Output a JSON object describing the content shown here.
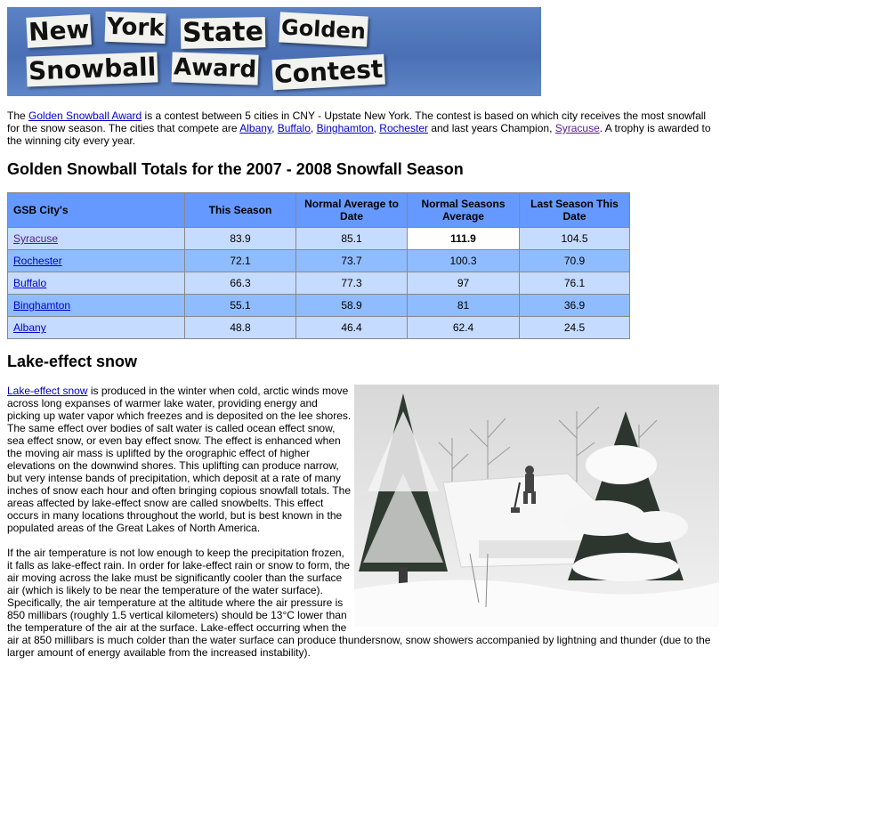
{
  "banner": {
    "line1": [
      "New",
      "York",
      "State",
      "Golden"
    ],
    "line2": [
      "Snowball",
      "Award",
      "Contest"
    ]
  },
  "intro": {
    "t1": "The ",
    "link_award": "Golden Snowball Award",
    "t2": " is a contest between 5 cities in CNY - Upstate New York. The contest is based on which city receives the most snowfall for the snow season. The cities that compete are ",
    "link_albany": "Albany",
    "sep1": ", ",
    "link_buffalo": "Buffalo",
    "sep2": ", ",
    "link_binghamton": "Binghamton",
    "sep3": ", ",
    "link_rochester": "Rochester",
    "t3": " and last years Champion, ",
    "link_syracuse": "Syracuse",
    "t4": ". A trophy is awarded to the winning city every year."
  },
  "totals_heading": "Golden Snowball Totals for the 2007 - 2008 Snowfall Season",
  "table": {
    "headers": [
      "GSB City's",
      "This Season",
      "Normal Average to Date",
      "Normal Seasons Average",
      "Last Season This Date"
    ],
    "rows": [
      {
        "city": "Syracuse",
        "this_season": "83.9",
        "normal_to_date": "85.1",
        "seasons_avg": "111.9",
        "last_season": "104.5"
      },
      {
        "city": "Rochester",
        "this_season": "72.1",
        "normal_to_date": "73.7",
        "seasons_avg": "100.3",
        "last_season": "70.9"
      },
      {
        "city": "Buffalo",
        "this_season": "66.3",
        "normal_to_date": "77.3",
        "seasons_avg": "97",
        "last_season": "76.1"
      },
      {
        "city": "Binghamton",
        "this_season": "55.1",
        "normal_to_date": "58.9",
        "seasons_avg": "81",
        "last_season": "36.9"
      },
      {
        "city": "Albany",
        "this_season": "48.8",
        "normal_to_date": "46.4",
        "seasons_avg": "62.4",
        "last_season": "24.5"
      }
    ]
  },
  "lake_heading": "Lake-effect snow",
  "lake": {
    "link": "Lake-effect snow",
    "p1": " is produced in the winter when cold, arctic winds move across long expanses of warmer lake water, providing energy and picking up water vapor which freezes and is deposited on the lee shores. The same effect over bodies of salt water is called ocean effect snow, sea effect snow, or even bay effect snow. The effect is enhanced when the moving air mass is uplifted by the orographic effect of higher elevations on the downwind shores. This uplifting can produce narrow, but very intense bands of precipitation, which deposit at a rate of many inches of snow each hour and often bringing copious snowfall totals. The areas affected by lake-effect snow are called snowbelts. This effect occurs in many locations throughout the world, but is best known in the populated areas of the Great Lakes of North America.",
    "p2": "If the air temperature is not low enough to keep the precipitation frozen, it falls as lake-effect rain. In order for lake-effect rain or snow to form, the air moving across the lake must be significantly cooler than the surface air (which is likely to be near the temperature of the water surface). Specifically, the air temperature at the altitude where the air pressure is 850 millibars (roughly 1.5 vertical kilometers) should be 13°C lower than the temperature of the air at the surface. Lake-effect occurring when the air at 850 millibars is much colder than the water surface can produce thundersnow, snow showers accompanied by lightning and thunder (due to the larger amount of energy available from the increased instability)."
  },
  "colors": {
    "table_header": "#6699ff",
    "row_light": "#c5dbff",
    "row_dark": "#8fbcff",
    "link": "#0000cc",
    "visited_link": "#551a8b",
    "banner_blue": "#4a6fb5"
  }
}
